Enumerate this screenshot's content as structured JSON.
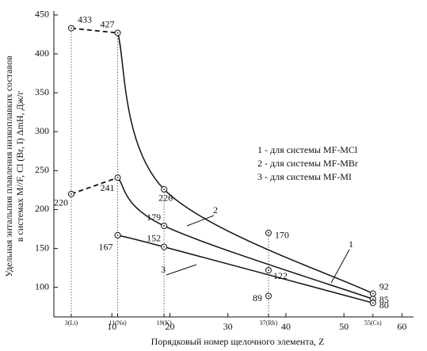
{
  "chart_data": {
    "type": "line",
    "y_label": [
      "Удельная энтальпия плавления низкоплавких составов",
      "в системах M//F, Cl (Br, I) ΔmH, Дж/г"
    ],
    "x_label": "Порядковый номер щелочного элемента, Z",
    "xlim": [
      0,
      62
    ],
    "ylim": [
      62,
      455
    ],
    "xticks": [
      10,
      20,
      30,
      40,
      50,
      60
    ],
    "yticks": [
      100,
      150,
      200,
      250,
      300,
      350,
      400,
      450
    ],
    "element_ticks": [
      {
        "value": 3,
        "label": "3(Li)"
      },
      {
        "value": 11,
        "label": "11(Na)"
      },
      {
        "value": 19,
        "label": "19(K)"
      },
      {
        "value": 37,
        "label": "37(Rb)"
      },
      {
        "value": 55,
        "label": "55(Cs)"
      }
    ],
    "series": [
      {
        "name": "1 - для системы MF-MCl",
        "label": "1",
        "color": "#111111",
        "dashed_first": true,
        "x": [
          3,
          11,
          19,
          55
        ],
        "values": [
          433,
          427,
          226,
          92
        ]
      },
      {
        "name": "2 - для системы MF-MBr",
        "label": "2",
        "color": "#111111",
        "dashed_first": true,
        "x": [
          3,
          11,
          19,
          55
        ],
        "values": [
          220,
          241,
          179,
          85
        ]
      },
      {
        "name": "3 - для системы MF-MI",
        "label": "3",
        "color": "#111111",
        "dashed_first": false,
        "x": [
          11,
          19,
          55
        ],
        "values": [
          167,
          152,
          80
        ]
      }
    ],
    "extra_points": {
      "x": 37,
      "values": [
        170,
        122,
        89
      ]
    }
  }
}
